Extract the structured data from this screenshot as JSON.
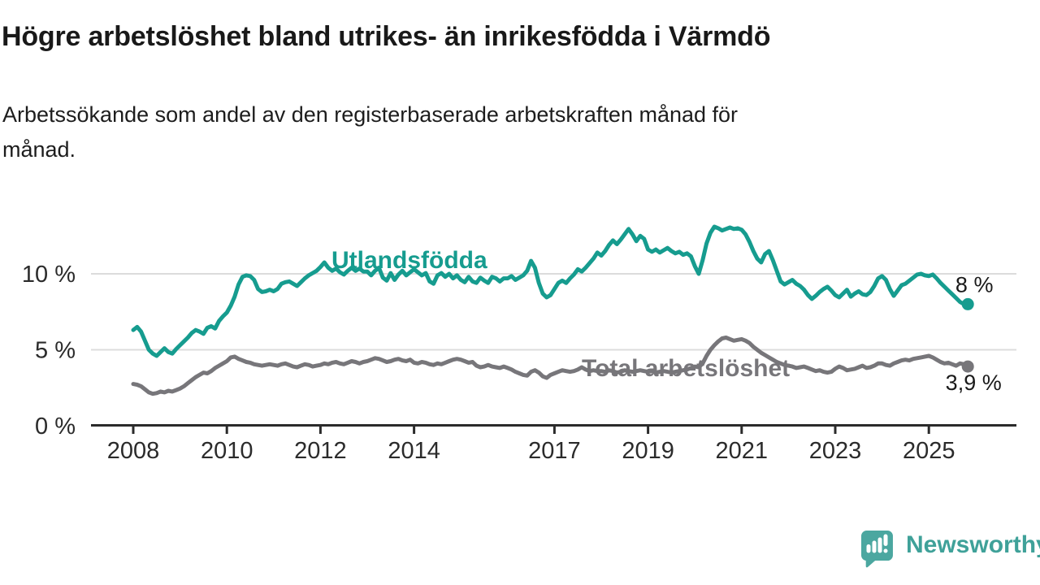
{
  "title": "Högre arbetslöshet bland utrikes- än inrikesfödda i Värmdö",
  "subtitle": "Arbetssökande som andel av den registerbaserade arbetskraften månad för månad.",
  "branding": {
    "logo_text": "Newsworthy",
    "logo_icon": "speech-bubble-bar-chart-icon",
    "logo_text_color": "#3fa199",
    "logo_icon_color": "#4ba7a0"
  },
  "chart_data": {
    "type": "line",
    "title": "Högre arbetslöshet bland utrikes- än inrikesfödda i Värmdö",
    "subtitle": "Arbetssökande som andel av den registerbaserade arbetskraften månad för månad.",
    "unit": "%",
    "grid": "horizontal-gridlines-at-5-and-10",
    "legend_position": "inline-labels-on-lines",
    "start": "2008-01",
    "interval": "monthly",
    "x_axis": {
      "tick_years": [
        2008,
        2010,
        2012,
        2014,
        2017,
        2019,
        2021,
        2023,
        2025
      ],
      "range": [
        "2008-01",
        "2025-11"
      ]
    },
    "y_axis": {
      "tick_values": [
        0,
        5,
        10
      ],
      "tick_labels": [
        "0 %",
        "5 %",
        "10 %"
      ],
      "ylim": [
        0,
        13.6
      ]
    },
    "series": [
      {
        "name": "Utlandsfödda",
        "color": "#169c8f",
        "end_label": "8 %",
        "last_value": 8.0,
        "values": [
          6.3,
          6.5,
          6.2,
          5.6,
          5.0,
          4.75,
          4.6,
          4.85,
          5.1,
          4.85,
          4.75,
          5.05,
          5.3,
          5.55,
          5.8,
          6.1,
          6.3,
          6.2,
          6.05,
          6.45,
          6.55,
          6.4,
          6.9,
          7.2,
          7.45,
          7.9,
          8.5,
          9.3,
          9.8,
          9.9,
          9.85,
          9.6,
          9.0,
          8.8,
          8.85,
          8.95,
          8.85,
          9.0,
          9.35,
          9.45,
          9.5,
          9.35,
          9.2,
          9.45,
          9.7,
          9.9,
          10.05,
          10.2,
          10.45,
          10.75,
          10.4,
          10.2,
          10.35,
          10.1,
          9.95,
          10.2,
          10.4,
          10.2,
          10.35,
          10.15,
          10.15,
          9.9,
          10.2,
          10.4,
          9.75,
          9.55,
          10.05,
          9.6,
          9.95,
          10.2,
          9.9,
          10.1,
          10.3,
          10.1,
          9.9,
          10.05,
          9.5,
          9.35,
          9.9,
          10.05,
          9.8,
          10.0,
          9.7,
          9.9,
          9.6,
          9.45,
          9.8,
          9.5,
          9.4,
          9.75,
          9.55,
          9.4,
          9.8,
          9.7,
          9.5,
          9.7,
          9.7,
          9.85,
          9.6,
          9.75,
          9.9,
          10.2,
          10.85,
          10.4,
          9.4,
          8.7,
          8.45,
          8.6,
          9.0,
          9.4,
          9.55,
          9.4,
          9.7,
          9.95,
          10.3,
          10.15,
          10.4,
          10.7,
          11.0,
          11.4,
          11.2,
          11.5,
          11.9,
          12.2,
          11.95,
          12.25,
          12.6,
          12.95,
          12.6,
          12.15,
          12.5,
          12.3,
          11.6,
          11.45,
          11.6,
          11.4,
          11.55,
          11.7,
          11.5,
          11.35,
          11.45,
          11.25,
          11.35,
          11.15,
          10.5,
          10.0,
          10.9,
          12.0,
          12.7,
          13.1,
          13.0,
          12.85,
          12.95,
          13.05,
          12.95,
          13.0,
          12.9,
          12.6,
          12.1,
          11.5,
          11.0,
          10.75,
          11.3,
          11.5,
          10.9,
          10.2,
          9.5,
          9.3,
          9.45,
          9.6,
          9.35,
          9.2,
          8.95,
          8.6,
          8.35,
          8.55,
          8.8,
          9.0,
          9.15,
          8.9,
          8.6,
          8.45,
          8.7,
          8.95,
          8.5,
          8.7,
          8.85,
          8.65,
          8.6,
          8.8,
          9.2,
          9.7,
          9.85,
          9.6,
          9.0,
          8.55,
          8.9,
          9.25,
          9.35,
          9.55,
          9.75,
          9.95,
          10.0,
          9.9,
          9.85,
          9.95,
          9.7,
          9.4,
          9.15,
          8.9,
          8.65,
          8.4,
          8.15,
          8.0,
          8.0
        ]
      },
      {
        "name": "Total arbetslöshet",
        "color": "#77767a",
        "end_label": "3,9 %",
        "last_value": 3.9,
        "values": [
          2.75,
          2.7,
          2.6,
          2.4,
          2.2,
          2.1,
          2.15,
          2.25,
          2.2,
          2.3,
          2.25,
          2.35,
          2.45,
          2.6,
          2.8,
          3.0,
          3.2,
          3.35,
          3.5,
          3.45,
          3.6,
          3.8,
          3.95,
          4.1,
          4.25,
          4.5,
          4.55,
          4.4,
          4.3,
          4.2,
          4.15,
          4.05,
          4.0,
          3.95,
          4.0,
          4.05,
          4.0,
          3.95,
          4.05,
          4.1,
          4.0,
          3.9,
          3.85,
          3.95,
          4.05,
          4.0,
          3.9,
          3.95,
          4.0,
          4.1,
          4.05,
          4.15,
          4.2,
          4.1,
          4.05,
          4.15,
          4.25,
          4.2,
          4.1,
          4.2,
          4.25,
          4.35,
          4.45,
          4.4,
          4.3,
          4.2,
          4.25,
          4.35,
          4.4,
          4.3,
          4.25,
          4.35,
          4.15,
          4.1,
          4.2,
          4.15,
          4.05,
          4.0,
          4.1,
          4.05,
          4.15,
          4.25,
          4.35,
          4.4,
          4.35,
          4.25,
          4.15,
          4.2,
          3.95,
          3.85,
          3.9,
          4.0,
          3.9,
          3.85,
          3.8,
          3.9,
          3.8,
          3.7,
          3.55,
          3.45,
          3.35,
          3.3,
          3.55,
          3.65,
          3.5,
          3.25,
          3.15,
          3.35,
          3.45,
          3.55,
          3.65,
          3.6,
          3.55,
          3.6,
          3.7,
          3.85,
          3.7,
          3.6,
          3.65,
          3.6,
          3.6,
          3.55,
          3.65,
          3.6,
          3.5,
          3.55,
          3.65,
          3.6,
          3.55,
          3.6,
          3.65,
          3.6,
          3.55,
          3.6,
          3.5,
          3.55,
          3.6,
          3.55,
          3.5,
          3.55,
          3.6,
          3.65,
          3.7,
          3.8,
          3.9,
          3.85,
          4.1,
          4.6,
          5.0,
          5.3,
          5.55,
          5.75,
          5.8,
          5.7,
          5.6,
          5.65,
          5.7,
          5.6,
          5.45,
          5.2,
          5.0,
          4.8,
          4.65,
          4.5,
          4.35,
          4.2,
          4.1,
          4.0,
          3.95,
          3.9,
          3.8,
          3.85,
          3.9,
          3.8,
          3.7,
          3.6,
          3.65,
          3.55,
          3.5,
          3.55,
          3.75,
          3.9,
          3.8,
          3.65,
          3.7,
          3.75,
          3.85,
          3.95,
          3.8,
          3.85,
          3.95,
          4.1,
          4.1,
          4.0,
          3.95,
          4.1,
          4.2,
          4.3,
          4.35,
          4.3,
          4.4,
          4.45,
          4.5,
          4.55,
          4.6,
          4.5,
          4.35,
          4.2,
          4.1,
          4.15,
          4.05,
          3.95,
          4.1,
          4.05,
          3.9
        ]
      }
    ]
  }
}
